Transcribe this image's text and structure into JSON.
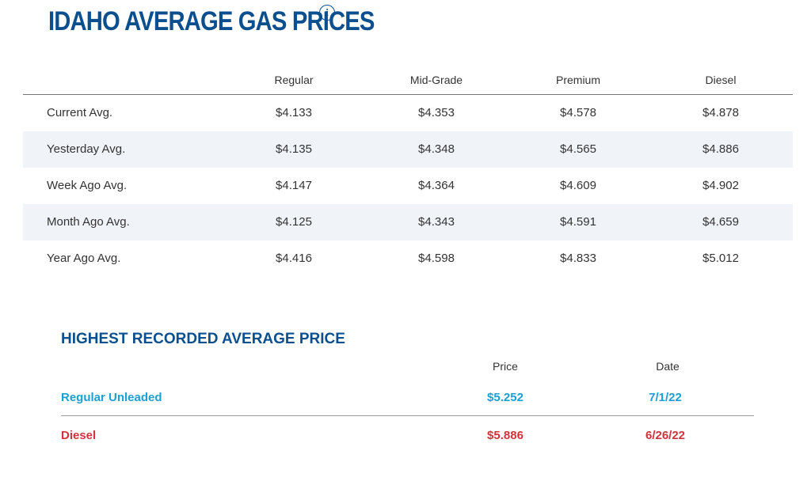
{
  "header": {
    "title": "IDAHO AVERAGE GAS PRICES",
    "info_icon": "info-icon"
  },
  "prices": {
    "columns": [
      "Regular",
      "Mid-Grade",
      "Premium",
      "Diesel"
    ],
    "rows": [
      {
        "label": "Current Avg.",
        "values": [
          "$4.133",
          "$4.353",
          "$4.578",
          "$4.878"
        ]
      },
      {
        "label": "Yesterday Avg.",
        "values": [
          "$4.135",
          "$4.348",
          "$4.565",
          "$4.886"
        ]
      },
      {
        "label": "Week Ago Avg.",
        "values": [
          "$4.147",
          "$4.364",
          "$4.609",
          "$4.902"
        ]
      },
      {
        "label": "Month Ago Avg.",
        "values": [
          "$4.125",
          "$4.343",
          "$4.591",
          "$4.659"
        ]
      },
      {
        "label": "Year Ago Avg.",
        "values": [
          "$4.416",
          "$4.598",
          "$4.833",
          "$5.012"
        ]
      }
    ]
  },
  "record": {
    "title": "HIGHEST RECORDED AVERAGE PRICE",
    "columns": {
      "price": "Price",
      "date": "Date"
    },
    "rows": [
      {
        "label": "Regular Unleaded",
        "price": "$5.252",
        "date": "7/1/22",
        "color": "#1ba0d3"
      },
      {
        "label": "Diesel",
        "price": "$5.886",
        "date": "6/26/22",
        "color": "#d1333c"
      }
    ]
  },
  "colors": {
    "title": "#0b4f8f",
    "alt_row": "#f0f4f8",
    "regular": "#1ba0d3",
    "diesel": "#d1333c"
  }
}
